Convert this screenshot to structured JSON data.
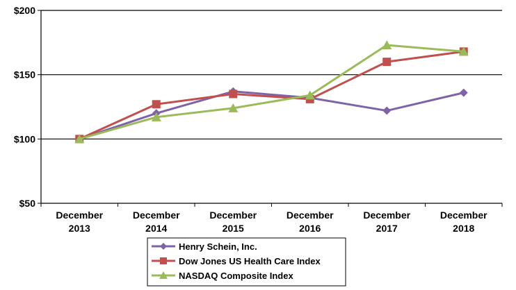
{
  "chart_data": {
    "type": "line",
    "title": "",
    "xlabel": "",
    "ylabel": "",
    "categories": [
      [
        "December",
        "2013"
      ],
      [
        "December",
        "2014"
      ],
      [
        "December",
        "2015"
      ],
      [
        "December",
        "2016"
      ],
      [
        "December",
        "2017"
      ],
      [
        "December",
        "2018"
      ]
    ],
    "ylim": [
      50,
      200
    ],
    "yticks": [
      50,
      100,
      150,
      200
    ],
    "ytick_labels": [
      "$50",
      "$100",
      "$150",
      "$200"
    ],
    "grid": true,
    "legend_position": "bottom",
    "series": [
      {
        "name": "Henry Schein, Inc.",
        "color": "#7f63a8",
        "marker": "diamond",
        "values": [
          100,
          120,
          137,
          132,
          122,
          136
        ]
      },
      {
        "name": "Dow Jones US Health Care Index",
        "color": "#c0504d",
        "marker": "square",
        "values": [
          100,
          127,
          135,
          131,
          160,
          168
        ]
      },
      {
        "name": "NASDAQ Composite Index",
        "color": "#9bbb59",
        "marker": "triangle",
        "values": [
          100,
          117,
          124,
          134,
          173,
          168
        ]
      }
    ]
  }
}
